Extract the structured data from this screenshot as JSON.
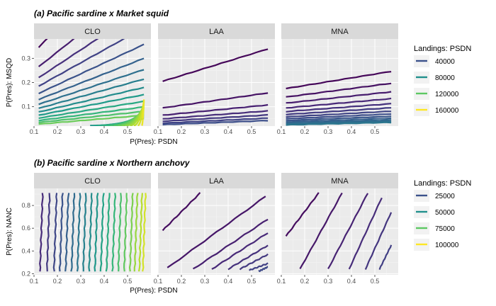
{
  "chart_data": [
    {
      "type": "line",
      "title": "(a) Pacific sardine x Market squid",
      "facets": [
        "CLO",
        "LAA",
        "MNA"
      ],
      "xlabel": "P(Pres): PSDN",
      "ylabel": "P(Pres): MSQD",
      "xlim": [
        0.1,
        0.6
      ],
      "ylim": [
        0.02,
        0.38
      ],
      "xticks": [
        0.1,
        0.2,
        0.3,
        0.4,
        0.5
      ],
      "yticks": [
        0.1,
        0.2,
        0.3
      ],
      "grid": true,
      "legend": {
        "title": "Landings: PSDN",
        "placement": "right",
        "entries": [
          {
            "label": "40000",
            "color": "#3b528b"
          },
          {
            "label": "80000",
            "color": "#21908c"
          },
          {
            "label": "120000",
            "color": "#5dc863"
          },
          {
            "label": "160000",
            "color": "#fde725"
          }
        ]
      },
      "color_range": [
        0,
        190000
      ],
      "panels": [
        {
          "facet": "CLO",
          "lines": {
            "x_start": 0.12,
            "x_end": 0.57,
            "y_intercepts": [
              0.345,
              0.265,
              0.22,
              0.185,
              0.155,
              0.13,
              0.11,
              0.093,
              0.078,
              0.065,
              0.053,
              0.043,
              0.035,
              0.028
            ],
            "slope_factor": 2.9,
            "landings_start": 4000,
            "landings_step": 11000,
            "extra_fill": true
          }
        },
        {
          "facet": "LAA",
          "lines": {
            "x_start": 0.12,
            "x_end": 0.57,
            "y_intercepts": [
              0.205,
              0.095,
              0.065,
              0.05,
              0.04,
              0.032,
              0.026
            ],
            "slope_factor": 1.45,
            "landings_start": 3000,
            "landings_step": 7000,
            "extra_fill": false
          }
        },
        {
          "facet": "MNA",
          "lines": {
            "x_start": 0.12,
            "x_end": 0.57,
            "y_intercepts": [
              0.175,
              0.14,
              0.115,
              0.095,
              0.08,
              0.068,
              0.058,
              0.05,
              0.043,
              0.037,
              0.032,
              0.028,
              0.025
            ],
            "slope_factor": 0.9,
            "landings_start": 3000,
            "landings_step": 6000,
            "extra_fill": false
          }
        }
      ]
    },
    {
      "type": "line",
      "title": "(b) Pacific sardine x Northern anchovy",
      "facets": [
        "CLO",
        "LAA",
        "MNA"
      ],
      "xlabel": "P(Pres): PSDN",
      "ylabel": "P(Pres): NANC",
      "xlim": [
        0.1,
        0.6
      ],
      "ylim": [
        0.19,
        0.95
      ],
      "xticks": [
        0.1,
        0.2,
        0.3,
        0.4,
        0.5
      ],
      "yticks": [
        0.2,
        0.4,
        0.6,
        0.8
      ],
      "grid": true,
      "legend": {
        "title": "Landings: PSDN",
        "placement": "right",
        "entries": [
          {
            "label": "25000",
            "color": "#3b528b"
          },
          {
            "label": "50000",
            "color": "#21908c"
          },
          {
            "label": "75000",
            "color": "#5dc863"
          },
          {
            "label": "100000",
            "color": "#fde725"
          }
        ]
      },
      "color_range": [
        0,
        115000
      ],
      "panels": [
        {
          "facet": "CLO",
          "vertical": true,
          "lines": {
            "x_positions": [
              0.125,
              0.155,
              0.185,
              0.21,
              0.235,
              0.26,
              0.285,
              0.31,
              0.335,
              0.36,
              0.385,
              0.41,
              0.435,
              0.46,
              0.485,
              0.51,
              0.53,
              0.55,
              0.565
            ],
            "y_start": 0.22,
            "y_end": 0.91,
            "landings_start": 14000,
            "landings_step": 5200
          }
        },
        {
          "facet": "LAA",
          "lines": {
            "y_points": [
              [
                0.12,
                0.58,
                0.28,
                0.91
              ],
              [
                0.14,
                0.25,
                0.56,
                0.88
              ],
              [
                0.25,
                0.24,
                0.57,
                0.68
              ],
              [
                0.33,
                0.24,
                0.57,
                0.56
              ],
              [
                0.4,
                0.24,
                0.57,
                0.45
              ],
              [
                0.45,
                0.24,
                0.57,
                0.37
              ],
              [
                0.49,
                0.23,
                0.57,
                0.29
              ],
              [
                0.53,
                0.22,
                0.57,
                0.26
              ]
            ],
            "landings_start": 4000,
            "landings_step": 3000
          }
        },
        {
          "facet": "MNA",
          "lines": {
            "y_points": [
              [
                0.12,
                0.53,
                0.26,
                0.91
              ],
              [
                0.18,
                0.24,
                0.36,
                0.91
              ],
              [
                0.3,
                0.24,
                0.47,
                0.91
              ],
              [
                0.39,
                0.24,
                0.53,
                0.87
              ],
              [
                0.46,
                0.24,
                0.57,
                0.74
              ],
              [
                0.52,
                0.24,
                0.57,
                0.45
              ]
            ],
            "landings_start": 4000,
            "landings_step": 3500
          }
        }
      ]
    }
  ]
}
